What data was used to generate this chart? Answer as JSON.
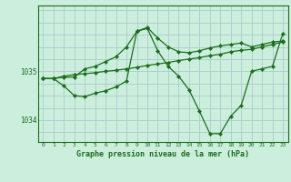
{
  "background_color": "#cceedd",
  "grid_color": "#aacccc",
  "line_color": "#1a6e1a",
  "title": "Graphe pression niveau de la mer (hPa)",
  "xlim": [
    -0.5,
    23.5
  ],
  "ylim": [
    1033.55,
    1036.35
  ],
  "yticks": [
    1034,
    1035
  ],
  "xticks": [
    0,
    1,
    2,
    3,
    4,
    5,
    6,
    7,
    8,
    9,
    10,
    11,
    12,
    13,
    14,
    15,
    16,
    17,
    18,
    19,
    20,
    21,
    22,
    23
  ],
  "series": [
    {
      "x": [
        0,
        1,
        2,
        3,
        4,
        5,
        6,
        7,
        8,
        9,
        10,
        11,
        12,
        13,
        14,
        15,
        16,
        17,
        18,
        19,
        20,
        21,
        22,
        23
      ],
      "y": [
        1034.85,
        1034.85,
        1034.9,
        1034.93,
        1034.95,
        1034.97,
        1035.0,
        1035.02,
        1035.05,
        1035.08,
        1035.12,
        1035.15,
        1035.18,
        1035.22,
        1035.25,
        1035.28,
        1035.32,
        1035.35,
        1035.4,
        1035.43,
        1035.45,
        1035.5,
        1035.55,
        1035.6
      ]
    },
    {
      "x": [
        0,
        1,
        2,
        3,
        4,
        5,
        6,
        7,
        8,
        9,
        10,
        11,
        12,
        13,
        14,
        15,
        16,
        17,
        18,
        19,
        20,
        21,
        22,
        23
      ],
      "y": [
        1034.85,
        1034.85,
        1034.88,
        1034.88,
        1035.05,
        1035.1,
        1035.2,
        1035.3,
        1035.5,
        1035.82,
        1035.9,
        1035.68,
        1035.5,
        1035.4,
        1035.38,
        1035.42,
        1035.48,
        1035.52,
        1035.55,
        1035.58,
        1035.5,
        1035.55,
        1035.6,
        1035.62
      ]
    },
    {
      "x": [
        0,
        1,
        2,
        3,
        4,
        5,
        6,
        7,
        8,
        9,
        10,
        11,
        12,
        13,
        14,
        15,
        16,
        17,
        18,
        19,
        20,
        21,
        22,
        23
      ],
      "y": [
        1034.85,
        1034.85,
        1034.7,
        1034.5,
        1034.48,
        1034.55,
        1034.6,
        1034.68,
        1034.8,
        1035.82,
        1035.88,
        1035.42,
        1035.1,
        1034.9,
        1034.62,
        1034.18,
        1033.72,
        1033.72,
        1034.08,
        1034.3,
        1035.0,
        1035.05,
        1035.1,
        1035.78
      ]
    }
  ]
}
